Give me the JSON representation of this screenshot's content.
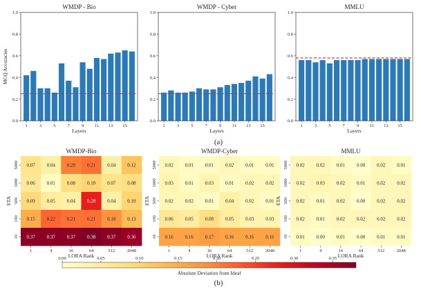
{
  "figure": {
    "caption_a": "(a)",
    "caption_b": "(b)"
  },
  "chart_data": [
    {
      "id": "bar-bio",
      "type": "bar",
      "title": "WMDP - Bio",
      "xlabel": "Layers",
      "ylabel": "MCQ Accuracies",
      "categories": [
        "1",
        "2",
        "3",
        "4",
        "5",
        "6",
        "7",
        "8",
        "9",
        "10",
        "11",
        "12",
        "13",
        "14",
        "15",
        "16"
      ],
      "xticks": [
        "1",
        "3",
        "5",
        "7",
        "9",
        "11",
        "13",
        "15"
      ],
      "values": [
        0.42,
        0.46,
        0.3,
        0.3,
        0.26,
        0.53,
        0.37,
        0.31,
        0.54,
        0.48,
        0.58,
        0.57,
        0.62,
        0.63,
        0.65,
        0.64
      ],
      "ylim": [
        0,
        1.0
      ],
      "yticks": [
        "0.0",
        "0.2",
        "0.4",
        "0.6",
        "0.8",
        "1.0"
      ],
      "reference_line": 0.25,
      "bar_color": "#2a7ab9",
      "reference_color": "#d62728"
    },
    {
      "id": "bar-cyber",
      "type": "bar",
      "title": "WMDP - Cyber",
      "xlabel": "Layers",
      "ylabel": "",
      "categories": [
        "1",
        "2",
        "3",
        "4",
        "5",
        "6",
        "7",
        "8",
        "9",
        "10",
        "11",
        "12",
        "13",
        "14",
        "15",
        "16"
      ],
      "xticks": [
        "1",
        "3",
        "5",
        "7",
        "9",
        "11",
        "13",
        "15"
      ],
      "values": [
        0.26,
        0.28,
        0.26,
        0.26,
        0.27,
        0.3,
        0.29,
        0.29,
        0.31,
        0.33,
        0.34,
        0.35,
        0.37,
        0.41,
        0.39,
        0.43
      ],
      "ylim": [
        0,
        1.0
      ],
      "yticks": [
        "0.0",
        "0.2",
        "0.4",
        "0.6",
        "0.8",
        "1.0"
      ],
      "reference_line": 0.25,
      "bar_color": "#2a7ab9",
      "reference_color": "#d62728"
    },
    {
      "id": "bar-mmlu",
      "type": "bar",
      "title": "MMLU",
      "xlabel": "Layers",
      "ylabel": "",
      "categories": [
        "1",
        "2",
        "3",
        "4",
        "5",
        "6",
        "7",
        "8",
        "9",
        "10",
        "11",
        "12",
        "13",
        "14",
        "15",
        "16"
      ],
      "xticks": [
        "1",
        "3",
        "5",
        "7",
        "9",
        "11",
        "13",
        "15"
      ],
      "values": [
        0.56,
        0.56,
        0.54,
        0.56,
        0.53,
        0.56,
        0.56,
        0.56,
        0.56,
        0.57,
        0.57,
        0.57,
        0.57,
        0.57,
        0.57,
        0.57
      ],
      "ylim": [
        0,
        1.0
      ],
      "yticks": [
        "0.0",
        "0.2",
        "0.4",
        "0.6",
        "0.8",
        "1.0"
      ],
      "reference_line": 0.58,
      "bar_color": "#2a7ab9",
      "reference_color": "#d62728"
    },
    {
      "id": "heat-bio",
      "type": "heatmap",
      "title": "WMDP-Bio",
      "xlabel": "LORA Rank",
      "ylabel": "ETA",
      "x": [
        "1",
        "4",
        "16",
        "64",
        "512",
        "2048"
      ],
      "y": [
        "5000",
        "1000",
        "500",
        "100",
        "10"
      ],
      "values": [
        [
          0.07,
          0.04,
          0.2,
          0.21,
          0.04,
          0.12
        ],
        [
          0.06,
          0.01,
          0.08,
          0.1,
          0.07,
          0.08
        ],
        [
          0.09,
          0.05,
          0.04,
          0.28,
          0.04,
          0.1
        ],
        [
          0.15,
          0.22,
          0.21,
          0.21,
          0.18,
          0.13
        ],
        [
          0.37,
          0.37,
          0.37,
          0.38,
          0.37,
          0.36
        ]
      ]
    },
    {
      "id": "heat-cyber",
      "type": "heatmap",
      "title": "WMDP-Cyber",
      "xlabel": "LORA Rank",
      "ylabel": "ETA",
      "x": [
        "1",
        "4",
        "16",
        "64",
        "512",
        "2048"
      ],
      "y": [
        "5000",
        "1000",
        "500",
        "100",
        "10"
      ],
      "values": [
        [
          0.02,
          0.01,
          0.01,
          0.02,
          0.01,
          0.01
        ],
        [
          0.03,
          0.01,
          0.03,
          0.01,
          0.02,
          0.02
        ],
        [
          0.02,
          0.02,
          0.01,
          0.04,
          0.02,
          0.01
        ],
        [
          0.06,
          0.05,
          0.08,
          0.05,
          0.03,
          0.03
        ],
        [
          0.16,
          0.16,
          0.17,
          0.16,
          0.16,
          0.16
        ]
      ]
    },
    {
      "id": "heat-mmlu",
      "type": "heatmap",
      "title": "MMLU",
      "xlabel": "LORA Rank",
      "ylabel": "ETA",
      "x": [
        "1",
        "4",
        "16",
        "64",
        "512",
        "2048"
      ],
      "y": [
        "5000",
        "1000",
        "500",
        "100",
        "10"
      ],
      "values": [
        [
          0.02,
          0.02,
          0.01,
          0.0,
          0.02,
          0.01
        ],
        [
          0.02,
          0.03,
          0.02,
          0.01,
          0.02,
          0.02
        ],
        [
          0.02,
          0.01,
          0.02,
          0.0,
          0.02,
          0.02
        ],
        [
          0.02,
          0.01,
          0.02,
          0.02,
          0.02,
          0.02
        ],
        [
          0.01,
          0.0,
          0.01,
          0.0,
          0.01,
          0.01
        ]
      ]
    }
  ],
  "colorbar": {
    "label": "Absolute Deviation from Ideal",
    "range": [
      0.0,
      0.38
    ],
    "ticks": [
      0.0,
      0.05,
      0.1,
      0.15,
      0.2,
      0.25,
      0.3,
      0.35
    ],
    "tick_labels": [
      "0.00",
      "0.05",
      "0.10",
      "0.15",
      "0.20",
      "0.25",
      "0.30",
      "0.35"
    ],
    "colormap": [
      "#ffffcc",
      "#ffeda0",
      "#fed976",
      "#feb24c",
      "#fd8d3c",
      "#fc4e2a",
      "#e31a1c",
      "#bd0026",
      "#800026"
    ]
  }
}
